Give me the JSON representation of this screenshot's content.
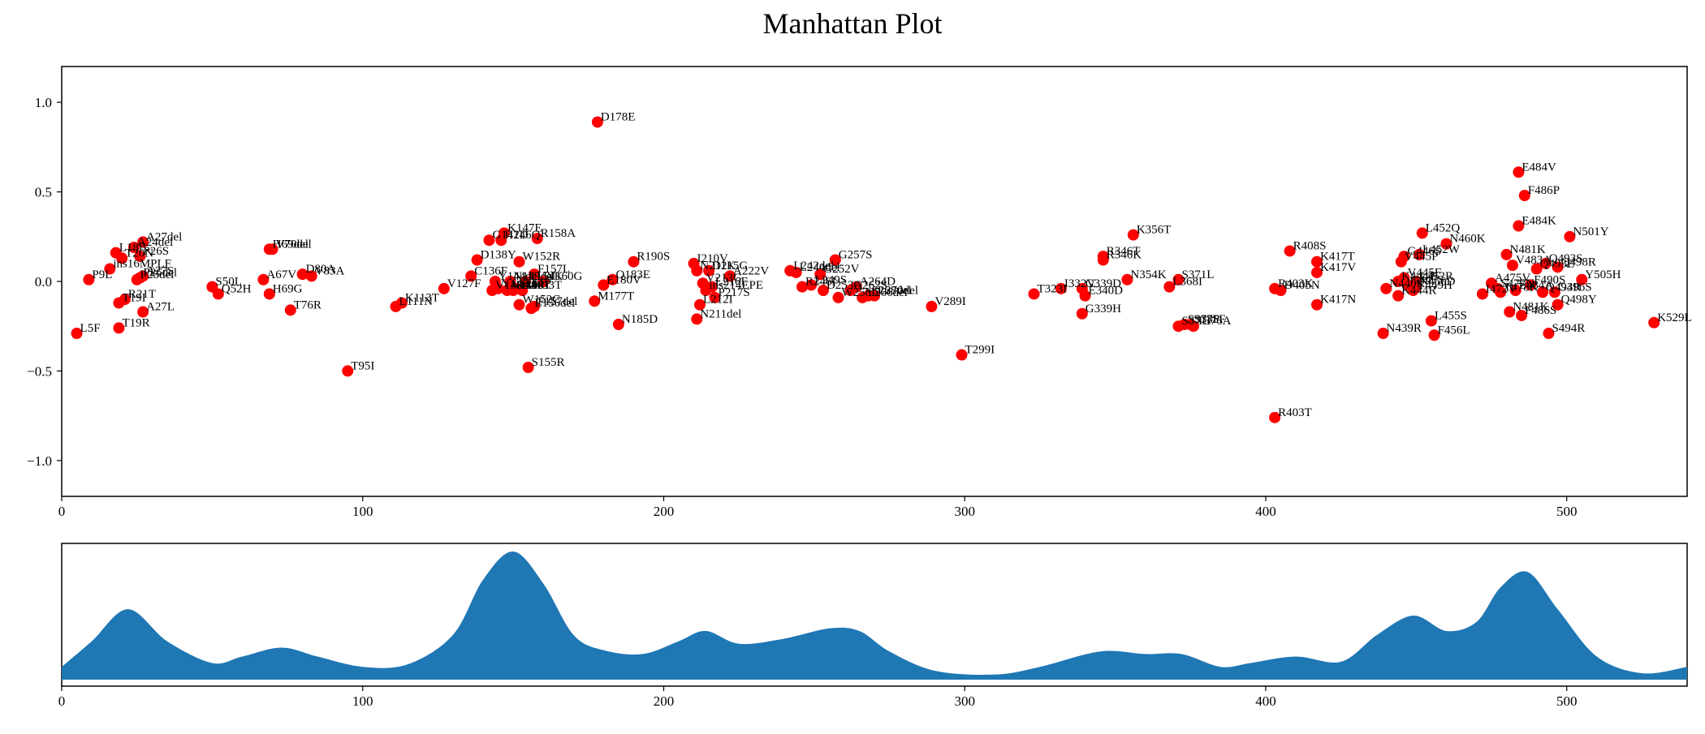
{
  "title": "Manhattan Plot",
  "colors": {
    "point": "#ff0000",
    "density": "#1f77b4",
    "axis": "#000000"
  },
  "chart_data": [
    {
      "type": "scatter",
      "title": "Manhattan Plot",
      "xlim": [
        0,
        540
      ],
      "ylim": [
        -1.2,
        1.2
      ],
      "xticks": [
        0,
        100,
        200,
        300,
        400,
        500
      ],
      "yticks": [
        "1.0",
        "0.5",
        "0.0",
        "−0.5",
        "−1.0"
      ],
      "ytick_values": [
        1.0,
        0.5,
        0.0,
        -0.5,
        -1.0
      ],
      "grid": false,
      "points": [
        {
          "x": 5,
          "y": -0.29,
          "label": "L5F"
        },
        {
          "x": 9,
          "y": 0.01,
          "label": "P9L"
        },
        {
          "x": 16,
          "y": 0.07,
          "label": "ins16MPLF"
        },
        {
          "x": 18,
          "y": 0.16,
          "label": "L18F"
        },
        {
          "x": 19,
          "y": -0.26,
          "label": "T19R"
        },
        {
          "x": 19,
          "y": -0.12,
          "label": "T19I"
        },
        {
          "x": 20,
          "y": 0.13,
          "label": "T20N"
        },
        {
          "x": 21,
          "y": -0.1,
          "label": "R21T"
        },
        {
          "x": 24,
          "y": 0.19,
          "label": "A24del"
        },
        {
          "x": 25,
          "y": 0.01,
          "label": "P25del"
        },
        {
          "x": 26,
          "y": 0.14,
          "label": "P26S"
        },
        {
          "x": 26,
          "y": 0.02,
          "label": "P26del"
        },
        {
          "x": 27,
          "y": 0.22,
          "label": "A27del"
        },
        {
          "x": 27,
          "y": -0.17,
          "label": "A27L"
        },
        {
          "x": 27,
          "y": 0.03,
          "label": "A27S"
        },
        {
          "x": 50,
          "y": -0.03,
          "label": "S50L"
        },
        {
          "x": 52,
          "y": -0.07,
          "label": "Q52H"
        },
        {
          "x": 67,
          "y": 0.01,
          "label": "A67V"
        },
        {
          "x": 69,
          "y": 0.18,
          "label": "H69del"
        },
        {
          "x": 69,
          "y": -0.07,
          "label": "H69G"
        },
        {
          "x": 70,
          "y": 0.18,
          "label": "V70del"
        },
        {
          "x": 76,
          "y": -0.16,
          "label": "T76R"
        },
        {
          "x": 80,
          "y": 0.04,
          "label": "D80A"
        },
        {
          "x": 83,
          "y": 0.03,
          "label": "V83A"
        },
        {
          "x": 95,
          "y": -0.5,
          "label": "T95I"
        },
        {
          "x": 111,
          "y": -0.14,
          "label": "L111N"
        },
        {
          "x": 113,
          "y": -0.12,
          "label": "K113T"
        },
        {
          "x": 127,
          "y": -0.04,
          "label": "V127F"
        },
        {
          "x": 136,
          "y": 0.03,
          "label": "C136F"
        },
        {
          "x": 138,
          "y": 0.12,
          "label": "D138Y"
        },
        {
          "x": 142,
          "y": 0.23,
          "label": "G142D"
        },
        {
          "x": 143,
          "y": -0.05,
          "label": "V143del"
        },
        {
          "x": 144,
          "y": 0.0,
          "label": "Y144del"
        },
        {
          "x": 145,
          "y": -0.04,
          "label": "Y145del"
        },
        {
          "x": 146,
          "y": 0.23,
          "label": "H146Q"
        },
        {
          "x": 147,
          "y": 0.27,
          "label": "K147E"
        },
        {
          "x": 148,
          "y": -0.05,
          "label": "N148S"
        },
        {
          "x": 149,
          "y": 0.0,
          "label": "N149del"
        },
        {
          "x": 150,
          "y": -0.05,
          "label": "K150T"
        },
        {
          "x": 151,
          "y": -0.04,
          "label": "S151P"
        },
        {
          "x": 152,
          "y": 0.11,
          "label": "W152R"
        },
        {
          "x": 152,
          "y": -0.13,
          "label": "W152C"
        },
        {
          "x": 153,
          "y": -0.05,
          "label": "M153T"
        },
        {
          "x": 154,
          "y": 0.0,
          "label": "E154K"
        },
        {
          "x": 155,
          "y": -0.48,
          "label": "S155R"
        },
        {
          "x": 156,
          "y": -0.15,
          "label": "E156del"
        },
        {
          "x": 157,
          "y": 0.04,
          "label": "F157L"
        },
        {
          "x": 157,
          "y": -0.14,
          "label": "F157del"
        },
        {
          "x": 158,
          "y": 0.24,
          "label": "R158A"
        },
        {
          "x": 160,
          "y": 0.0,
          "label": "Y160G"
        },
        {
          "x": 177,
          "y": -0.11,
          "label": "M177T"
        },
        {
          "x": 178,
          "y": 0.89,
          "label": "D178E"
        },
        {
          "x": 180,
          "y": -0.02,
          "label": "E180V"
        },
        {
          "x": 183,
          "y": 0.01,
          "label": "Q183E"
        },
        {
          "x": 185,
          "y": -0.24,
          "label": "N185D"
        },
        {
          "x": 190,
          "y": 0.11,
          "label": "R190S"
        },
        {
          "x": 210,
          "y": 0.1,
          "label": "I210V"
        },
        {
          "x": 211,
          "y": 0.06,
          "label": "N211K"
        },
        {
          "x": 211,
          "y": -0.21,
          "label": "N211del"
        },
        {
          "x": 212,
          "y": -0.13,
          "label": "L212I"
        },
        {
          "x": 213,
          "y": -0.01,
          "label": "V213G"
        },
        {
          "x": 214,
          "y": -0.05,
          "label": "ins214EPE"
        },
        {
          "x": 215,
          "y": 0.06,
          "label": "D215G"
        },
        {
          "x": 216,
          "y": -0.03,
          "label": "L216F"
        },
        {
          "x": 217,
          "y": -0.09,
          "label": "P217S"
        },
        {
          "x": 222,
          "y": 0.03,
          "label": "A222V"
        },
        {
          "x": 242,
          "y": 0.06,
          "label": "L242del"
        },
        {
          "x": 244,
          "y": 0.05,
          "label": "L244del"
        },
        {
          "x": 246,
          "y": -0.03,
          "label": "R246I"
        },
        {
          "x": 249,
          "y": -0.02,
          "label": "L249S"
        },
        {
          "x": 252,
          "y": 0.04,
          "label": "G252V"
        },
        {
          "x": 253,
          "y": -0.05,
          "label": "D253G"
        },
        {
          "x": 257,
          "y": 0.12,
          "label": "G257S"
        },
        {
          "x": 258,
          "y": -0.09,
          "label": "W258L"
        },
        {
          "x": 262,
          "y": -0.05,
          "label": "A262S"
        },
        {
          "x": 264,
          "y": -0.03,
          "label": "A264D"
        },
        {
          "x": 266,
          "y": -0.09,
          "label": "Y266del"
        },
        {
          "x": 268,
          "y": -0.08,
          "label": "S268del"
        },
        {
          "x": 270,
          "y": -0.08,
          "label": "L270del"
        },
        {
          "x": 289,
          "y": -0.14,
          "label": "V289I"
        },
        {
          "x": 299,
          "y": -0.41,
          "label": "T299I"
        },
        {
          "x": 323,
          "y": -0.07,
          "label": "T323I"
        },
        {
          "x": 332,
          "y": -0.04,
          "label": "I332V"
        },
        {
          "x": 339,
          "y": -0.04,
          "label": "G339D"
        },
        {
          "x": 339,
          "y": -0.18,
          "label": "G339H"
        },
        {
          "x": 340,
          "y": -0.08,
          "label": "E340D"
        },
        {
          "x": 346,
          "y": 0.14,
          "label": "R346T"
        },
        {
          "x": 346,
          "y": 0.12,
          "label": "R346K"
        },
        {
          "x": 354,
          "y": 0.01,
          "label": "N354K"
        },
        {
          "x": 356,
          "y": 0.26,
          "label": "K356T"
        },
        {
          "x": 368,
          "y": -0.03,
          "label": "L368I"
        },
        {
          "x": 371,
          "y": 0.01,
          "label": "S371L"
        },
        {
          "x": 371,
          "y": -0.25,
          "label": "S371F"
        },
        {
          "x": 373,
          "y": -0.24,
          "label": "S373P"
        },
        {
          "x": 375,
          "y": -0.24,
          "label": "S375F"
        },
        {
          "x": 376,
          "y": -0.25,
          "label": "T376A"
        },
        {
          "x": 403,
          "y": -0.76,
          "label": "R403T"
        },
        {
          "x": 403,
          "y": -0.04,
          "label": "R403K"
        },
        {
          "x": 405,
          "y": -0.05,
          "label": "D405N"
        },
        {
          "x": 408,
          "y": 0.17,
          "label": "R408S"
        },
        {
          "x": 417,
          "y": 0.11,
          "label": "K417T"
        },
        {
          "x": 417,
          "y": 0.05,
          "label": "K417V"
        },
        {
          "x": 417,
          "y": -0.13,
          "label": "K417N"
        },
        {
          "x": 439,
          "y": -0.29,
          "label": "N439R"
        },
        {
          "x": 440,
          "y": -0.04,
          "label": "N440K"
        },
        {
          "x": 444,
          "y": -0.08,
          "label": "K444R"
        },
        {
          "x": 444,
          "y": 0.0,
          "label": "K444T"
        },
        {
          "x": 445,
          "y": 0.11,
          "label": "V445P"
        },
        {
          "x": 446,
          "y": 0.14,
          "label": "G446S"
        },
        {
          "x": 446,
          "y": 0.02,
          "label": "V445F"
        },
        {
          "x": 447,
          "y": -0.02,
          "label": "G447S"
        },
        {
          "x": 449,
          "y": -0.05,
          "label": "Y449H"
        },
        {
          "x": 450,
          "y": -0.03,
          "label": "N450D"
        },
        {
          "x": 450,
          "y": 0.0,
          "label": "L452R"
        },
        {
          "x": 451,
          "y": 0.15,
          "label": "L452W"
        },
        {
          "x": 452,
          "y": 0.27,
          "label": "L452Q"
        },
        {
          "x": 455,
          "y": -0.22,
          "label": "L455S"
        },
        {
          "x": 456,
          "y": -0.3,
          "label": "F456L"
        },
        {
          "x": 460,
          "y": 0.21,
          "label": "N460K"
        },
        {
          "x": 472,
          "y": -0.07,
          "label": "I472V"
        },
        {
          "x": 475,
          "y": -0.01,
          "label": "A475V"
        },
        {
          "x": 477,
          "y": -0.04,
          "label": "S477N"
        },
        {
          "x": 478,
          "y": -0.06,
          "label": "T478K"
        },
        {
          "x": 480,
          "y": 0.15,
          "label": "N481K"
        },
        {
          "x": 481,
          "y": -0.17,
          "label": "N481K"
        },
        {
          "x": 482,
          "y": 0.09,
          "label": "V483A"
        },
        {
          "x": 483,
          "y": -0.05,
          "label": "E484A"
        },
        {
          "x": 484,
          "y": 0.61,
          "label": "E484V"
        },
        {
          "x": 484,
          "y": 0.31,
          "label": "E484K"
        },
        {
          "x": 485,
          "y": -0.19,
          "label": "F486S"
        },
        {
          "x": 486,
          "y": 0.48,
          "label": "F486P"
        },
        {
          "x": 488,
          "y": -0.02,
          "label": "F490S"
        },
        {
          "x": 490,
          "y": 0.07,
          "label": "Q493E"
        },
        {
          "x": 492,
          "y": -0.06,
          "label": "Q493R"
        },
        {
          "x": 493,
          "y": 0.1,
          "label": "Q493S"
        },
        {
          "x": 494,
          "y": -0.29,
          "label": "S494R"
        },
        {
          "x": 496,
          "y": -0.06,
          "label": "G496S"
        },
        {
          "x": 497,
          "y": 0.08,
          "label": "Q498R"
        },
        {
          "x": 497,
          "y": -0.13,
          "label": "Q498Y"
        },
        {
          "x": 501,
          "y": 0.25,
          "label": "N501Y"
        },
        {
          "x": 505,
          "y": 0.01,
          "label": "Y505H"
        },
        {
          "x": 529,
          "y": -0.23,
          "label": "K529L"
        }
      ]
    },
    {
      "type": "area",
      "xlim": [
        0,
        540
      ],
      "xticks": [
        0,
        100,
        200,
        300,
        400,
        500
      ],
      "grid": false,
      "x": [
        0,
        10,
        22,
        35,
        50,
        60,
        73,
        85,
        100,
        115,
        130,
        140,
        150,
        160,
        170,
        180,
        193,
        205,
        214,
        225,
        240,
        255,
        265,
        275,
        290,
        310,
        325,
        345,
        360,
        372,
        385,
        395,
        410,
        425,
        437,
        449,
        460,
        470,
        478,
        487,
        497,
        510,
        525,
        540
      ],
      "y": [
        0.1,
        0.3,
        0.55,
        0.3,
        0.13,
        0.18,
        0.25,
        0.18,
        0.1,
        0.12,
        0.35,
        0.78,
        1.0,
        0.75,
        0.35,
        0.23,
        0.2,
        0.3,
        0.38,
        0.28,
        0.32,
        0.4,
        0.38,
        0.22,
        0.07,
        0.04,
        0.1,
        0.22,
        0.2,
        0.2,
        0.1,
        0.13,
        0.18,
        0.14,
        0.35,
        0.5,
        0.38,
        0.45,
        0.72,
        0.84,
        0.55,
        0.18,
        0.05,
        0.1
      ]
    }
  ]
}
